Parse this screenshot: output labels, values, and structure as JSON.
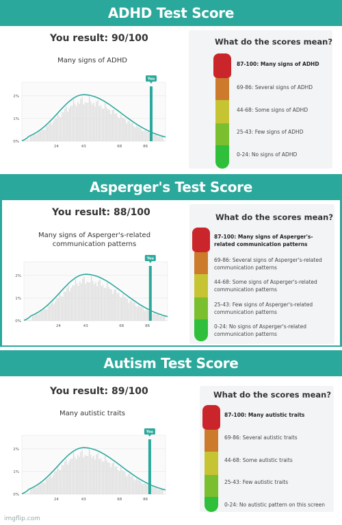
{
  "watermark": "imgflip.com",
  "colors": {
    "banner": "#2ba89c",
    "teal": "#2ba89c",
    "bar": "#dddddd",
    "scale": [
      "#c9252b",
      "#cc7a2c",
      "#c7c433",
      "#7bbf2f",
      "#2fbf3a"
    ]
  },
  "cards": [
    {
      "banner": "ADHD Test Score",
      "result": "You result: 90/100",
      "subtitle": "Many signs of ADHD",
      "marker_label": "You",
      "legend_title": "What do the scores mean?",
      "legend": [
        "87-100: Many signs of ADHD",
        "69-86: Several signs of ADHD",
        "44-68: Some signs of ADHD",
        "25-43: Few signs of ADHD",
        "0-24: No signs of ADHD"
      ]
    },
    {
      "banner": "Asperger's Test Score",
      "result": "You result: 88/100",
      "subtitle": "Many signs of Asperger's-related communication patterns",
      "marker_label": "You",
      "legend_title": "What do the scores mean?",
      "legend": [
        "87-100: Many signs of Asperger's-related communication patterns",
        "69-86: Several signs of Asperger's-related communication patterns",
        "44-68: Some signs of Asperger's-related communication patterns",
        "25-43: Few signs of Asperger's-related communication patterns",
        "0-24: No signs of Asperger's-related communication patterns"
      ]
    },
    {
      "banner": "Autism Test Score",
      "result": "You result: 89/100",
      "subtitle": "Many autistic traits",
      "marker_label": "You",
      "legend_title": "What do the scores mean?",
      "legend": [
        "87-100: Many autistic traits",
        "69-86: Several autistic traits",
        "44-68: Some autistic traits",
        "25-43: Few autistic traits",
        "0-24: No autistic pattern on this screen"
      ]
    }
  ],
  "chart_data": [
    {
      "type": "bar",
      "title": "",
      "xticks": [
        24,
        43,
        68,
        86
      ],
      "yticks": [
        "0%",
        "1%",
        "2%"
      ],
      "ylim": [
        0,
        2.6
      ],
      "xlim": [
        0,
        100
      ],
      "highlight_x": 90,
      "curve_peak_x": 43,
      "curve_peak_y": 2.05
    },
    {
      "type": "bar",
      "title": "",
      "xticks": [
        24,
        43,
        68,
        86
      ],
      "yticks": [
        "0%",
        "1%",
        "2%"
      ],
      "ylim": [
        0,
        2.6
      ],
      "xlim": [
        0,
        100
      ],
      "highlight_x": 88,
      "curve_peak_x": 43,
      "curve_peak_y": 2.05
    },
    {
      "type": "bar",
      "title": "",
      "xticks": [
        24,
        43,
        68,
        86
      ],
      "yticks": [
        "0%",
        "1%",
        "2%"
      ],
      "ylim": [
        0,
        2.6
      ],
      "xlim": [
        0,
        100
      ],
      "highlight_x": 89,
      "curve_peak_x": 43,
      "curve_peak_y": 2.05
    }
  ]
}
